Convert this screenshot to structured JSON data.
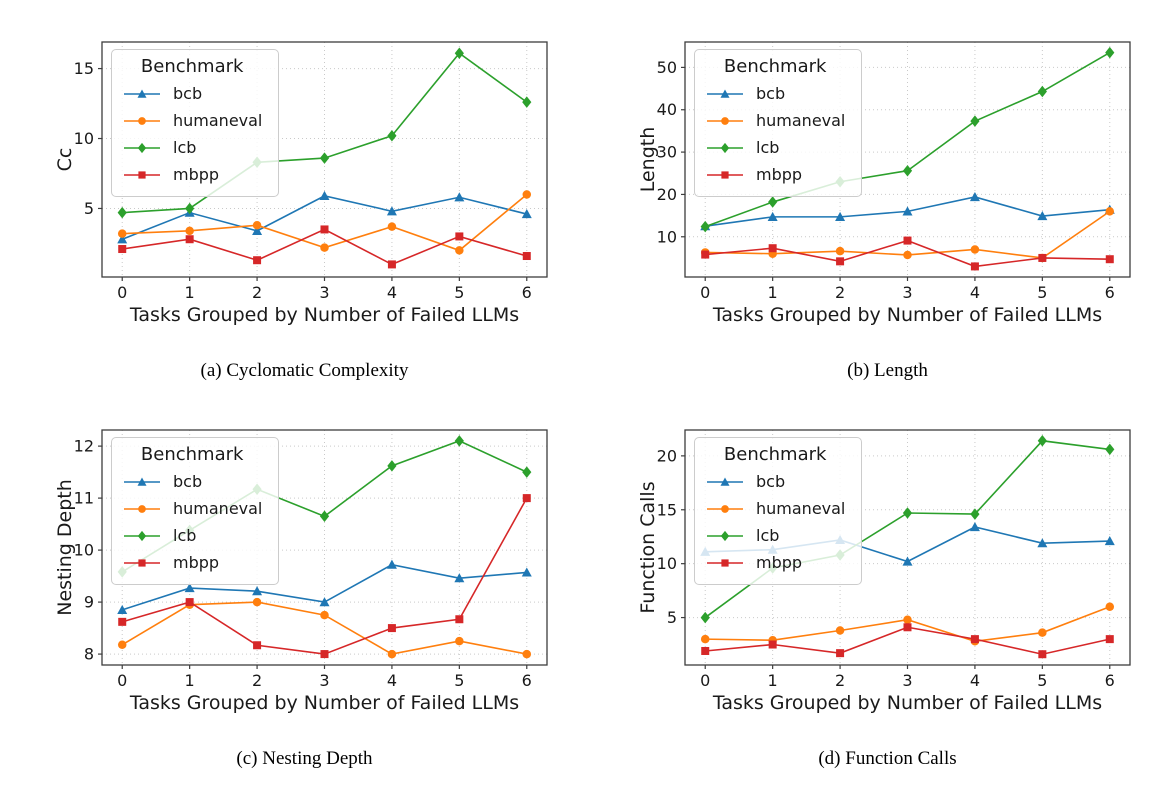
{
  "page": {
    "background": "#ffffff"
  },
  "legend": {
    "title": "Benchmark"
  },
  "benchmarks": [
    {
      "name": "bcb",
      "color": "#1f77b4",
      "marker": "triangle"
    },
    {
      "name": "humaneval",
      "color": "#ff7f0e",
      "marker": "circle"
    },
    {
      "name": "lcb",
      "color": "#2ca02c",
      "marker": "diamond"
    },
    {
      "name": "mbpp",
      "color": "#d62728",
      "marker": "square"
    }
  ],
  "style": {
    "grid_color": "#c9c9c9",
    "spine_color": "#3d3d3d",
    "text_color": "#1a1a1a"
  },
  "chart_data": [
    {
      "id": "a",
      "type": "line",
      "caption": "(a) Cyclomatic Complexity",
      "title": "",
      "xlabel": "Tasks Grouped by Number of Failed LLMs",
      "ylabel": "Cc",
      "x": [
        0,
        1,
        2,
        3,
        4,
        5,
        6
      ],
      "xticks": [
        0,
        1,
        2,
        3,
        4,
        5,
        6
      ],
      "yticks": [
        5,
        10,
        15
      ],
      "xlim": [
        -0.3,
        6.3
      ],
      "ylim": [
        0.1,
        16.9
      ],
      "grid": true,
      "legend_position": "upper-left",
      "series": [
        {
          "name": "bcb",
          "values": [
            2.8,
            4.7,
            3.4,
            5.9,
            4.8,
            5.8,
            4.6
          ]
        },
        {
          "name": "humaneval",
          "values": [
            3.2,
            3.4,
            3.8,
            2.2,
            3.7,
            2.0,
            6.0
          ]
        },
        {
          "name": "lcb",
          "values": [
            4.7,
            5.0,
            8.3,
            8.6,
            10.2,
            16.1,
            12.6
          ]
        },
        {
          "name": "mbpp",
          "values": [
            2.1,
            2.8,
            1.3,
            3.5,
            1.0,
            3.0,
            1.6
          ]
        }
      ]
    },
    {
      "id": "b",
      "type": "line",
      "caption": "(b) Length",
      "title": "",
      "xlabel": "Tasks Grouped by Number of Failed LLMs",
      "ylabel": "Length",
      "x": [
        0,
        1,
        2,
        3,
        4,
        5,
        6
      ],
      "xticks": [
        0,
        1,
        2,
        3,
        4,
        5,
        6
      ],
      "yticks": [
        10,
        20,
        30,
        40,
        50
      ],
      "xlim": [
        -0.3,
        6.3
      ],
      "ylim": [
        0.5,
        56.0
      ],
      "grid": true,
      "legend_position": "upper-left",
      "series": [
        {
          "name": "bcb",
          "values": [
            12.5,
            14.7,
            14.7,
            16.0,
            19.4,
            14.9,
            16.4
          ]
        },
        {
          "name": "humaneval",
          "values": [
            6.3,
            6.0,
            6.6,
            5.7,
            7.0,
            5.0,
            16.0
          ]
        },
        {
          "name": "lcb",
          "values": [
            12.4,
            18.2,
            23.0,
            25.6,
            37.3,
            44.3,
            53.5
          ]
        },
        {
          "name": "mbpp",
          "values": [
            5.8,
            7.3,
            4.2,
            9.1,
            3.0,
            5.0,
            4.7
          ]
        }
      ]
    },
    {
      "id": "c",
      "type": "line",
      "caption": "(c) Nesting Depth",
      "title": "",
      "xlabel": "Tasks Grouped by Number of Failed LLMs",
      "ylabel": "Nesting Depth",
      "x": [
        0,
        1,
        2,
        3,
        4,
        5,
        6
      ],
      "xticks": [
        0,
        1,
        2,
        3,
        4,
        5,
        6
      ],
      "yticks": [
        8,
        9,
        10,
        11,
        12
      ],
      "xlim": [
        -0.3,
        6.3
      ],
      "ylim": [
        7.79,
        12.31
      ],
      "grid": true,
      "legend_position": "upper-left",
      "series": [
        {
          "name": "bcb",
          "values": [
            8.85,
            9.27,
            9.21,
            9.0,
            9.72,
            9.46,
            9.57
          ]
        },
        {
          "name": "humaneval",
          "values": [
            8.18,
            8.95,
            9.0,
            8.75,
            8.0,
            8.25,
            8.0
          ]
        },
        {
          "name": "lcb",
          "values": [
            9.58,
            10.38,
            11.17,
            10.65,
            11.62,
            12.1,
            11.5
          ]
        },
        {
          "name": "mbpp",
          "values": [
            8.62,
            9.0,
            8.17,
            8.0,
            8.5,
            8.67,
            11.0
          ]
        }
      ]
    },
    {
      "id": "d",
      "type": "line",
      "caption": "(d) Function Calls",
      "title": "",
      "xlabel": "Tasks Grouped by Number of Failed LLMs",
      "ylabel": "Function Calls",
      "x": [
        0,
        1,
        2,
        3,
        4,
        5,
        6
      ],
      "xticks": [
        0,
        1,
        2,
        3,
        4,
        5,
        6
      ],
      "yticks": [
        5,
        10,
        15,
        20
      ],
      "xlim": [
        -0.3,
        6.3
      ],
      "ylim": [
        0.6,
        22.4
      ],
      "grid": true,
      "legend_position": "upper-left",
      "series": [
        {
          "name": "bcb",
          "values": [
            11.1,
            11.3,
            12.2,
            10.2,
            13.4,
            11.9,
            12.1
          ]
        },
        {
          "name": "humaneval",
          "values": [
            3.0,
            2.9,
            3.8,
            4.8,
            2.8,
            3.6,
            6.0
          ]
        },
        {
          "name": "lcb",
          "values": [
            5.0,
            9.6,
            10.8,
            14.7,
            14.6,
            21.4,
            20.6
          ]
        },
        {
          "name": "mbpp",
          "values": [
            1.9,
            2.5,
            1.7,
            4.1,
            3.0,
            1.6,
            3.0
          ]
        }
      ]
    }
  ]
}
